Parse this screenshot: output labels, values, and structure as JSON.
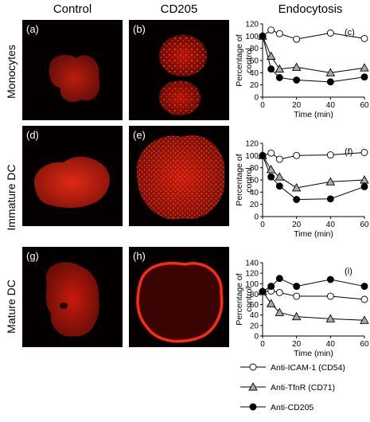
{
  "column_titles": {
    "control": "Control",
    "cd205": "CD205",
    "endocytosis": "Endocytosis"
  },
  "row_labels": [
    "Monocytes",
    "Immature DC",
    "Mature DC"
  ],
  "image_panels": [
    {
      "letter": "(a)",
      "row": 0,
      "col": 0
    },
    {
      "letter": "(b)",
      "row": 0,
      "col": 1
    },
    {
      "letter": "(d)",
      "row": 1,
      "col": 0
    },
    {
      "letter": "(e)",
      "row": 1,
      "col": 1
    },
    {
      "letter": "(g)",
      "row": 2,
      "col": 0
    },
    {
      "letter": "(h)",
      "row": 2,
      "col": 1
    }
  ],
  "colors": {
    "cell_red": "#d81a0c",
    "membrane_red": "#ff2a10",
    "background": "#050000",
    "tfnr_fill": "#aaaaaa",
    "cd205_fill": "#000000",
    "icam_fill": "#ffffff"
  },
  "chart_data": [
    {
      "type": "line",
      "panel": "(c)",
      "xlabel": "Time (min)",
      "ylabel": "Percentage of control",
      "xlim": [
        0,
        60
      ],
      "ylim": [
        0,
        120
      ],
      "xticks": [
        0,
        20,
        40,
        60
      ],
      "yticks": [
        0,
        20,
        40,
        60,
        80,
        100,
        120
      ],
      "series": [
        {
          "name": "Anti-ICAM-1 (CD54)",
          "marker": "circle-open",
          "x": [
            0,
            5,
            10,
            20,
            40,
            60
          ],
          "y": [
            100,
            110,
            104,
            95,
            105,
            96
          ]
        },
        {
          "name": "Anti-TfnR (CD71)",
          "marker": "triangle",
          "x": [
            0,
            5,
            10,
            20,
            40,
            60
          ],
          "y": [
            100,
            67,
            46,
            49,
            40,
            48
          ]
        },
        {
          "name": "Anti-CD205",
          "marker": "circle-filled",
          "x": [
            0,
            5,
            10,
            20,
            40,
            60
          ],
          "y": [
            100,
            46,
            32,
            28,
            25,
            33
          ]
        }
      ]
    },
    {
      "type": "line",
      "panel": "(f)",
      "xlabel": "Time (min)",
      "ylabel": "Percentage of control",
      "xlim": [
        0,
        60
      ],
      "ylim": [
        0,
        120
      ],
      "xticks": [
        0,
        20,
        40,
        60
      ],
      "yticks": [
        0,
        20,
        40,
        60,
        80,
        100,
        120
      ],
      "series": [
        {
          "name": "Anti-ICAM-1 (CD54)",
          "marker": "circle-open",
          "x": [
            0,
            5,
            10,
            20,
            40,
            60
          ],
          "y": [
            100,
            104,
            94,
            100,
            101,
            105
          ]
        },
        {
          "name": "Anti-TfnR (CD71)",
          "marker": "triangle",
          "x": [
            0,
            5,
            10,
            20,
            40,
            60
          ],
          "y": [
            100,
            77,
            65,
            47,
            57,
            60
          ]
        },
        {
          "name": "Anti-CD205",
          "marker": "circle-filled",
          "x": [
            0,
            5,
            10,
            20,
            40,
            60
          ],
          "y": [
            100,
            65,
            50,
            28,
            29,
            49
          ]
        }
      ]
    },
    {
      "type": "line",
      "panel": "(i)",
      "xlabel": "Time (min)",
      "ylabel": "Percentage of control",
      "xlim": [
        0,
        60
      ],
      "ylim": [
        0,
        140
      ],
      "xticks": [
        0,
        20,
        40,
        60
      ],
      "yticks": [
        0,
        20,
        40,
        60,
        80,
        100,
        120,
        140
      ],
      "series": [
        {
          "name": "Anti-ICAM-1 (CD54)",
          "marker": "circle-open",
          "x": [
            0,
            5,
            10,
            20,
            40,
            60
          ],
          "y": [
            85,
            86,
            83,
            76,
            76,
            70
          ]
        },
        {
          "name": "Anti-TfnR (CD71)",
          "marker": "triangle",
          "x": [
            0,
            5,
            10,
            20,
            40,
            60
          ],
          "y": [
            85,
            62,
            45,
            37,
            33,
            30
          ]
        },
        {
          "name": "Anti-CD205",
          "marker": "circle-filled",
          "x": [
            0,
            5,
            10,
            20,
            40,
            60
          ],
          "y": [
            85,
            95,
            110,
            95,
            108,
            95
          ]
        }
      ]
    }
  ],
  "legend": [
    {
      "label": "Anti-ICAM-1 (CD54)",
      "marker": "circle-open"
    },
    {
      "label": "Anti-TfnR (CD71)",
      "marker": "triangle"
    },
    {
      "label": "Anti-CD205",
      "marker": "circle-filled"
    }
  ]
}
